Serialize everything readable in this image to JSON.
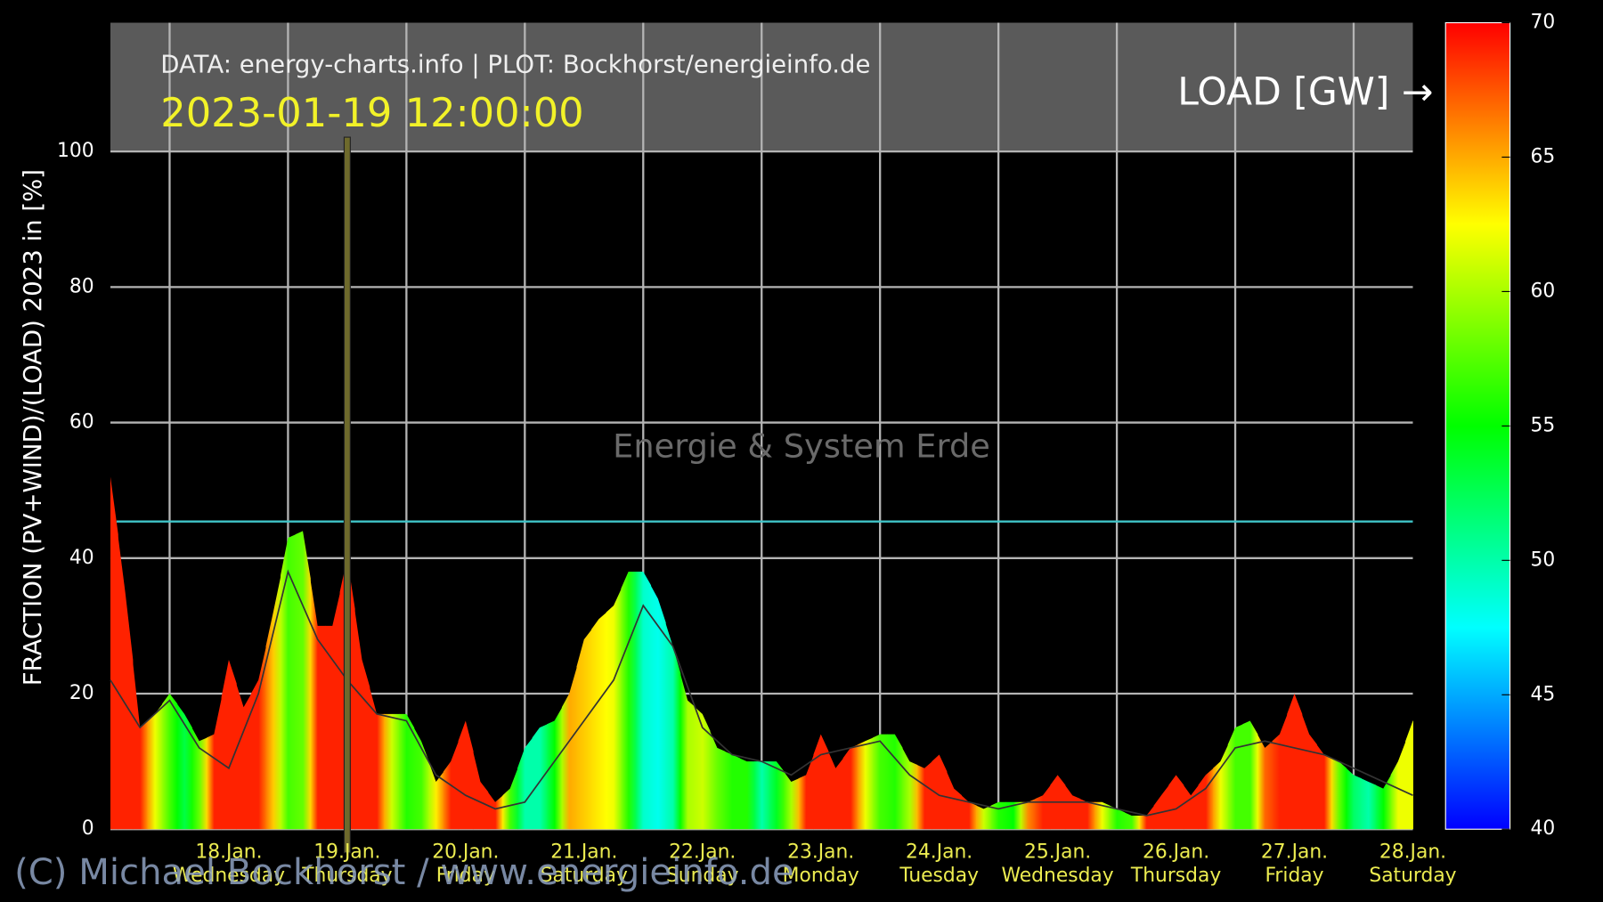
{
  "chart_data": {
    "type": "colored_area",
    "header": "DATA: energy-charts.info | PLOT: Bockhorst/energieinfo.de",
    "timestamp": "2023-01-19 12:00:00",
    "colorbar_label": "LOAD [GW] →",
    "y_label": "FRACTION (PV+WIND)/(LOAD) 2023 in [%]",
    "watermark": "Energie & System Erde",
    "copyright": "(C) Michael Bockhorst / www.energieinfo.de",
    "xlim": [
      17.5,
      28.5
    ],
    "xgrid": [
      18,
      19,
      20,
      21,
      22,
      23,
      24,
      25,
      26,
      27,
      28
    ],
    "xticks": [
      {
        "value": 18.5,
        "label": "18.Jan."
      },
      {
        "value": 19.5,
        "label": "19.Jan."
      },
      {
        "value": 20.5,
        "label": "20.Jan."
      },
      {
        "value": 21.5,
        "label": "21.Jan."
      },
      {
        "value": 22.5,
        "label": "22.Jan."
      },
      {
        "value": 23.5,
        "label": "23.Jan."
      },
      {
        "value": 24.5,
        "label": "24.Jan."
      },
      {
        "value": 25.5,
        "label": "25.Jan."
      },
      {
        "value": 26.5,
        "label": "26.Jan."
      },
      {
        "value": 27.5,
        "label": "27.Jan."
      },
      {
        "value": 28.5,
        "label": "28.Jan."
      }
    ],
    "x_weekdays": [
      "Wednesday",
      "Thursday",
      "Friday",
      "Saturday",
      "Sunday",
      "Monday",
      "Tuesday",
      "Wednesday",
      "Thursday",
      "Friday",
      "Saturday"
    ],
    "ylim": [
      0,
      119
    ],
    "yticks": [
      0,
      20,
      40,
      60,
      80,
      100
    ],
    "grid": true,
    "clim": [
      40,
      70
    ],
    "cticks": [
      40,
      45,
      50,
      55,
      60,
      65,
      70
    ],
    "colormap": [
      "#0000ff",
      "#00ffff",
      "#00ff00",
      "#ffff00",
      "#ff0000"
    ],
    "hline": 45.4,
    "hline_color": "#40c4c8",
    "marker_x": 19.5,
    "marker_color": "#6e6a2c",
    "series": [
      {
        "x": [
          17.5,
          17.625,
          17.75,
          17.875,
          18,
          18.125,
          18.25,
          18.375,
          18.5,
          18.625,
          18.75,
          18.875,
          19,
          19.125,
          19.25,
          19.375,
          19.5,
          19.625,
          19.75,
          19.875,
          20,
          20.125,
          20.25,
          20.375,
          20.5,
          20.625,
          20.75,
          20.875,
          21,
          21.125,
          21.25,
          21.375,
          21.5,
          21.625,
          21.75,
          21.875,
          22,
          22.125,
          22.25,
          22.375,
          22.5,
          22.625,
          22.75,
          22.875,
          23,
          23.125,
          23.25,
          23.375,
          23.5,
          23.625,
          23.75,
          23.875,
          24,
          24.125,
          24.25,
          24.375,
          24.5,
          24.625,
          24.75,
          24.875,
          25,
          25.125,
          25.25,
          25.375,
          25.5,
          25.625,
          25.75,
          25.875,
          26,
          26.125,
          26.25,
          26.375,
          26.5,
          26.625,
          26.75,
          26.875,
          27,
          27.125,
          27.25,
          27.375,
          27.5,
          27.625,
          27.75,
          27.875,
          28,
          28.125,
          28.25,
          28.375,
          28.5
        ],
        "values": [
          52,
          35,
          15,
          17,
          20,
          17,
          13,
          14,
          25,
          18,
          22,
          32,
          43,
          44,
          30,
          30,
          40,
          25,
          17,
          17,
          17,
          13,
          7,
          10,
          16,
          7,
          4,
          6,
          12,
          15,
          16,
          20,
          28,
          31,
          33,
          38,
          38,
          34,
          27,
          19,
          17,
          12,
          11,
          10,
          10,
          10,
          7,
          8,
          14,
          9,
          12,
          13,
          14,
          14,
          10,
          9,
          11,
          6,
          4,
          3,
          4,
          4,
          4,
          5,
          8,
          5,
          4,
          4,
          3,
          2,
          2,
          5,
          8,
          5,
          8,
          10,
          15,
          16,
          12,
          14,
          20,
          14,
          11,
          10,
          8,
          7,
          6,
          10,
          16
        ],
        "loads": [
          69,
          69,
          69,
          62,
          57,
          53,
          58,
          69,
          69,
          69,
          69,
          64,
          57,
          58,
          69,
          69,
          69,
          69,
          69,
          61,
          56,
          57,
          63,
          69,
          69,
          69,
          69,
          57,
          50,
          50,
          55,
          65,
          64,
          63,
          62,
          56,
          49,
          48,
          50,
          60,
          61,
          58,
          56,
          56,
          50,
          54,
          60,
          69,
          69,
          69,
          69,
          62,
          57,
          56,
          60,
          69,
          69,
          69,
          69,
          61,
          56,
          55,
          66,
          69,
          69,
          69,
          69,
          62,
          56,
          57,
          69,
          69,
          69,
          69,
          69,
          62,
          57,
          57,
          67,
          69,
          69,
          69,
          69,
          58,
          52,
          50,
          55,
          62,
          62
        ]
      },
      {
        "color": "#333333",
        "x": [
          17.5,
          17.75,
          18,
          18.25,
          18.5,
          18.75,
          19,
          19.25,
          19.5,
          19.75,
          20,
          20.25,
          20.5,
          20.75,
          21,
          21.25,
          21.5,
          21.75,
          22,
          22.25,
          22.5,
          22.75,
          23,
          23.25,
          23.5,
          23.75,
          24,
          24.25,
          24.5,
          24.75,
          25,
          25.25,
          25.5,
          25.75,
          26,
          26.25,
          26.5,
          26.75,
          27,
          27.25,
          27.5,
          27.75,
          28,
          28.25,
          28.5
        ],
        "values": [
          22,
          15,
          19,
          12,
          9,
          20,
          38,
          28,
          22,
          17,
          16,
          8,
          5,
          3,
          4,
          10,
          16,
          22,
          33,
          27,
          15,
          11,
          10,
          8,
          11,
          12,
          13,
          8,
          5,
          4,
          3,
          4,
          4,
          4,
          3,
          2,
          3,
          6,
          12,
          13,
          12,
          11,
          9,
          7,
          5
        ]
      }
    ]
  }
}
